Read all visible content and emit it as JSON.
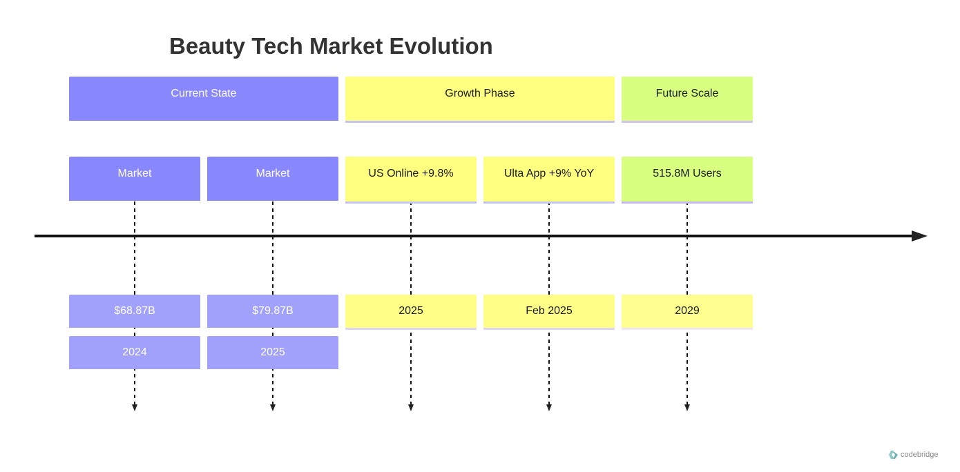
{
  "title": "Beauty Tech Market Evolution",
  "sections": [
    {
      "label": "Current State",
      "color": "#8888fc",
      "tasks": [
        {
          "label": "Market",
          "events": [
            "$68.87B",
            "2024"
          ]
        },
        {
          "label": "Market",
          "events": [
            "$79.87B",
            "2025"
          ]
        }
      ]
    },
    {
      "label": "Growth Phase",
      "color": "#ffff80",
      "tasks": [
        {
          "label": "US Online +9.8%",
          "events": [
            "2025"
          ]
        },
        {
          "label": "Ulta App +9% YoY",
          "events": [
            "Feb 2025"
          ]
        }
      ]
    },
    {
      "label": "Future Scale",
      "color": "#d8ff80",
      "tasks": [
        {
          "label": "515.8M Users",
          "events": [
            "2029"
          ]
        }
      ]
    }
  ],
  "brand": {
    "text": "codebridge",
    "icon": "codebridge-logo-icon"
  }
}
